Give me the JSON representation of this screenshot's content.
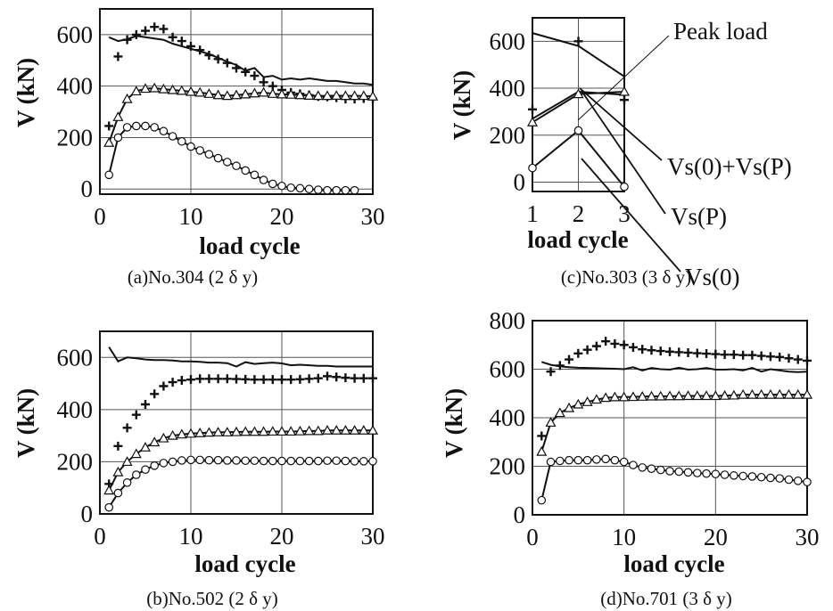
{
  "chart_data": [
    {
      "id": "a",
      "type": "line",
      "caption": "(a)No.304 (2 δ y)",
      "xlabel": "load cycle",
      "ylabel": "V (kN)",
      "xlim": [
        0,
        30
      ],
      "ylim": [
        -20,
        700
      ],
      "xticks": [
        0,
        10,
        20,
        30
      ],
      "yticks": [
        0,
        200,
        400,
        600
      ],
      "grid": true,
      "series": [
        {
          "marker": "plus",
          "line": false,
          "x": [
            1,
            2,
            3,
            4,
            5,
            6,
            7,
            8,
            9,
            10,
            11,
            12,
            13,
            14,
            15,
            16,
            17,
            18,
            19,
            20,
            21,
            22,
            23,
            24,
            25,
            26,
            27,
            28,
            29,
            30
          ],
          "y": [
            245,
            515,
            580,
            600,
            615,
            630,
            622,
            590,
            575,
            555,
            540,
            520,
            505,
            490,
            470,
            455,
            440,
            415,
            400,
            385,
            375,
            370,
            365,
            360,
            358,
            355,
            350,
            350,
            352,
            350
          ]
        },
        {
          "marker": "none",
          "line": true,
          "x": [
            1,
            2,
            3,
            4,
            5,
            6,
            7,
            8,
            9,
            10,
            11,
            12,
            13,
            14,
            15,
            16,
            17,
            18,
            19,
            20,
            21,
            22,
            23,
            24,
            25,
            26,
            27,
            28,
            29,
            30
          ],
          "y": [
            590,
            575,
            582,
            595,
            590,
            585,
            580,
            565,
            555,
            545,
            535,
            525,
            510,
            495,
            482,
            460,
            470,
            435,
            440,
            425,
            430,
            425,
            430,
            425,
            420,
            420,
            415,
            410,
            410,
            405
          ]
        },
        {
          "marker": "triangle",
          "line": true,
          "x": [
            1,
            2,
            3,
            4,
            5,
            6,
            7,
            8,
            9,
            10,
            11,
            12,
            13,
            14,
            15,
            16,
            17,
            18,
            19,
            20,
            21,
            22,
            23,
            24,
            25,
            26,
            27,
            28,
            29,
            30
          ],
          "y": [
            180,
            280,
            350,
            380,
            390,
            392,
            388,
            385,
            382,
            378,
            375,
            370,
            365,
            362,
            365,
            368,
            372,
            375,
            370,
            368,
            367,
            365,
            363,
            362,
            362,
            363,
            362,
            362,
            362,
            360
          ]
        },
        {
          "marker": "circle",
          "line": true,
          "x": [
            1,
            2,
            3,
            4,
            5,
            6,
            7,
            8,
            9,
            10,
            11,
            12,
            13,
            14,
            15,
            16,
            17,
            18,
            19,
            20,
            21,
            22,
            23,
            24,
            25,
            26,
            27,
            28
          ],
          "y": [
            55,
            200,
            240,
            245,
            245,
            240,
            225,
            205,
            185,
            165,
            150,
            135,
            120,
            105,
            90,
            72,
            55,
            35,
            20,
            12,
            5,
            3,
            0,
            -3,
            -5,
            -5,
            -5,
            -5
          ]
        }
      ]
    },
    {
      "id": "c",
      "type": "line",
      "caption": "(c)No.303 (3 δ y)",
      "xlabel": "load cycle",
      "ylabel": "V (kN)",
      "xlim": [
        1,
        3
      ],
      "ylim": [
        -40,
        700
      ],
      "xticks": [
        1,
        2,
        3
      ],
      "yticks": [
        0,
        200,
        400,
        600
      ],
      "grid": true,
      "series": [
        {
          "name": "Peak load",
          "marker": "plus",
          "line": false,
          "x": [
            1,
            2,
            3
          ],
          "y": [
            310,
            600,
            350
          ]
        },
        {
          "marker": "none",
          "line": true,
          "x": [
            1,
            2,
            3
          ],
          "y": [
            635,
            580,
            450
          ]
        },
        {
          "name": "Vs(0)+Vs(P)",
          "marker": "none",
          "line": true,
          "x": [
            1,
            2,
            3
          ],
          "y": [
            270,
            385,
            372
          ]
        },
        {
          "name": "Vs(P)",
          "marker": "triangle",
          "line": true,
          "x": [
            1,
            2,
            3
          ],
          "y": [
            255,
            375,
            385
          ]
        },
        {
          "name": "Vs(0)",
          "marker": "circle",
          "line": true,
          "x": [
            1,
            2,
            3
          ],
          "y": [
            60,
            220,
            -20
          ]
        }
      ],
      "annotations": [
        "Peak load",
        "Vs(0)+Vs(P)",
        "Vs(P)",
        "Vs(0)"
      ]
    },
    {
      "id": "b",
      "type": "line",
      "caption": "(b)No.502 (2 δ y)",
      "xlabel": "load cycle",
      "ylabel": "V (kN)",
      "xlim": [
        0,
        30
      ],
      "ylim": [
        0,
        700
      ],
      "xticks": [
        0,
        10,
        20,
        30
      ],
      "yticks": [
        0,
        200,
        400,
        600
      ],
      "grid": true,
      "series": [
        {
          "marker": "plus",
          "line": false,
          "x": [
            1,
            2,
            3,
            4,
            5,
            6,
            7,
            8,
            9,
            10,
            11,
            12,
            13,
            14,
            15,
            16,
            17,
            18,
            19,
            20,
            21,
            22,
            23,
            24,
            25,
            26,
            27,
            28,
            29,
            30
          ],
          "y": [
            115,
            260,
            330,
            380,
            420,
            460,
            490,
            505,
            512,
            515,
            518,
            518,
            518,
            518,
            517,
            516,
            515,
            515,
            515,
            515,
            515,
            516,
            518,
            520,
            528,
            525,
            522,
            520,
            520,
            520
          ]
        },
        {
          "marker": "none",
          "line": true,
          "x": [
            1,
            2,
            3,
            4,
            5,
            6,
            7,
            8,
            9,
            10,
            11,
            12,
            13,
            14,
            15,
            16,
            17,
            18,
            19,
            20,
            21,
            22,
            23,
            24,
            25,
            26,
            27,
            28,
            29,
            30
          ],
          "y": [
            640,
            585,
            600,
            597,
            592,
            590,
            590,
            588,
            585,
            585,
            583,
            580,
            580,
            578,
            565,
            582,
            575,
            578,
            580,
            577,
            570,
            572,
            570,
            568,
            568,
            565,
            565,
            565,
            565,
            565
          ]
        },
        {
          "marker": "triangle",
          "line": true,
          "x": [
            1,
            2,
            3,
            4,
            5,
            6,
            7,
            8,
            9,
            10,
            11,
            12,
            13,
            14,
            15,
            16,
            17,
            18,
            19,
            20,
            21,
            22,
            23,
            24,
            25,
            26,
            27,
            28,
            29,
            30
          ],
          "y": [
            90,
            160,
            200,
            230,
            255,
            275,
            290,
            300,
            305,
            308,
            310,
            312,
            313,
            313,
            314,
            315,
            315,
            315,
            316,
            316,
            316,
            317,
            318,
            318,
            320,
            320,
            320,
            320,
            320,
            320
          ]
        },
        {
          "marker": "circle",
          "line": true,
          "x": [
            1,
            2,
            3,
            4,
            5,
            6,
            7,
            8,
            9,
            10,
            11,
            12,
            13,
            14,
            15,
            16,
            17,
            18,
            19,
            20,
            21,
            22,
            23,
            24,
            25,
            26,
            27,
            28,
            29,
            30
          ],
          "y": [
            25,
            80,
            120,
            150,
            170,
            185,
            195,
            200,
            205,
            207,
            207,
            206,
            206,
            205,
            205,
            204,
            204,
            203,
            203,
            203,
            203,
            203,
            203,
            203,
            204,
            204,
            203,
            202,
            202,
            202
          ]
        }
      ]
    },
    {
      "id": "d",
      "type": "line",
      "caption": "(d)No.701 (3 δ y)",
      "xlabel": "load cycle",
      "ylabel": "V (kN)",
      "xlim": [
        0,
        30
      ],
      "ylim": [
        0,
        800
      ],
      "xticks": [
        0,
        10,
        20,
        30
      ],
      "yticks": [
        0,
        200,
        400,
        600,
        800
      ],
      "grid": true,
      "series": [
        {
          "marker": "plus",
          "line": false,
          "x": [
            1,
            2,
            3,
            4,
            5,
            6,
            7,
            8,
            9,
            10,
            11,
            12,
            13,
            14,
            15,
            16,
            17,
            18,
            19,
            20,
            21,
            22,
            23,
            24,
            25,
            26,
            27,
            28,
            29,
            30
          ],
          "y": [
            325,
            590,
            615,
            640,
            665,
            680,
            695,
            715,
            705,
            700,
            690,
            682,
            678,
            675,
            672,
            670,
            668,
            666,
            664,
            662,
            660,
            660,
            658,
            658,
            655,
            652,
            650,
            645,
            640,
            635
          ]
        },
        {
          "marker": "none",
          "line": true,
          "x": [
            1,
            2,
            3,
            4,
            5,
            6,
            7,
            8,
            9,
            10,
            11,
            12,
            13,
            14,
            15,
            16,
            17,
            18,
            19,
            20,
            21,
            22,
            23,
            24,
            25,
            26,
            27,
            28,
            29,
            30
          ],
          "y": [
            630,
            618,
            612,
            608,
            606,
            605,
            604,
            603,
            602,
            600,
            608,
            595,
            605,
            600,
            598,
            606,
            598,
            600,
            605,
            598,
            598,
            600,
            595,
            605,
            590,
            600,
            595,
            590,
            588,
            590
          ]
        },
        {
          "marker": "triangle",
          "line": true,
          "x": [
            1,
            2,
            3,
            4,
            5,
            6,
            7,
            8,
            9,
            10,
            11,
            12,
            13,
            14,
            15,
            16,
            17,
            18,
            19,
            20,
            21,
            22,
            23,
            24,
            25,
            26,
            27,
            28,
            29,
            30
          ],
          "y": [
            260,
            380,
            420,
            440,
            455,
            465,
            475,
            482,
            485,
            485,
            486,
            487,
            488,
            488,
            489,
            489,
            490,
            490,
            490,
            490,
            491,
            492,
            495,
            495,
            495,
            495,
            495,
            495,
            495,
            495
          ]
        },
        {
          "marker": "circle",
          "line": true,
          "x": [
            1,
            2,
            3,
            4,
            5,
            6,
            7,
            8,
            9,
            10,
            11,
            12,
            13,
            14,
            15,
            16,
            17,
            18,
            19,
            20,
            21,
            22,
            23,
            24,
            25,
            26,
            27,
            28,
            29,
            30
          ],
          "y": [
            60,
            218,
            222,
            225,
            225,
            225,
            228,
            230,
            225,
            218,
            205,
            195,
            190,
            185,
            180,
            178,
            175,
            172,
            170,
            168,
            165,
            162,
            160,
            158,
            155,
            152,
            150,
            145,
            140,
            135
          ]
        }
      ]
    }
  ]
}
